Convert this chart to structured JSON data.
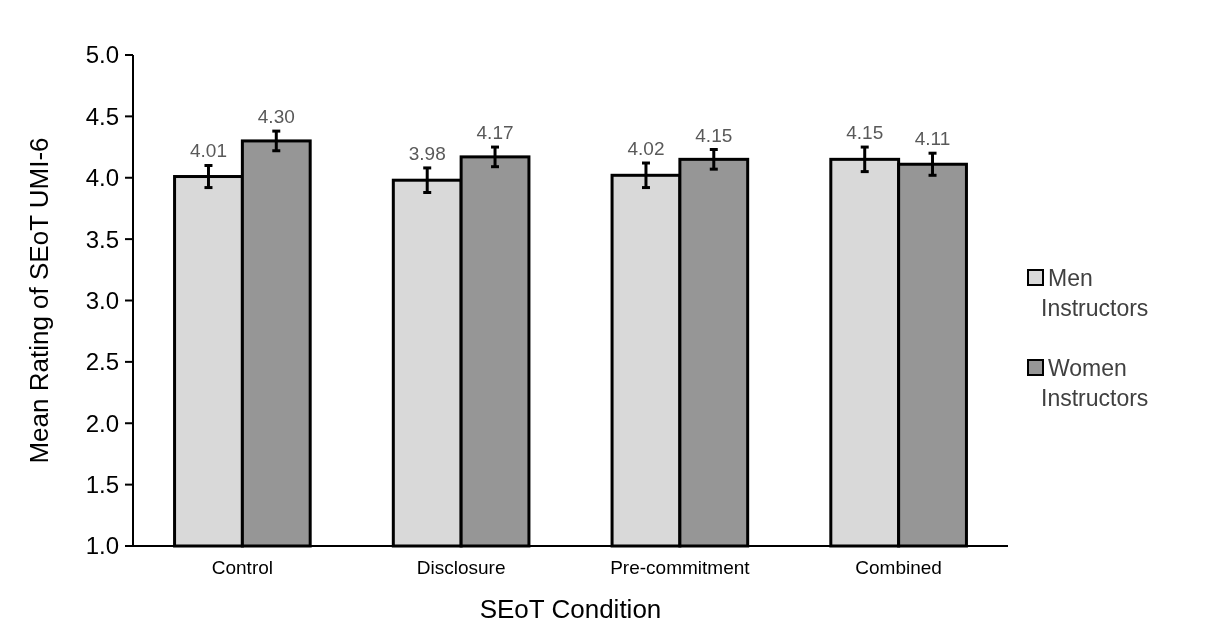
{
  "chart_data": {
    "type": "bar",
    "xlabel": "SEoT Condition",
    "ylabel": "Mean Rating of SEoT UMI-6",
    "categories": [
      "Control",
      "Disclosure",
      "Pre-commitment",
      "Combined"
    ],
    "series": [
      {
        "name": "Men Instructors",
        "color": "#d9d9d9",
        "values": [
          4.01,
          3.98,
          4.02,
          4.15
        ],
        "errors": [
          0.09,
          0.1,
          0.1,
          0.1
        ]
      },
      {
        "name": "Women Instructors",
        "color": "#969696",
        "values": [
          4.3,
          4.17,
          4.15,
          4.11
        ],
        "errors": [
          0.08,
          0.08,
          0.08,
          0.09
        ]
      }
    ],
    "ylim": [
      1.0,
      5.0
    ],
    "yticks": [
      {
        "value": 1,
        "label": "1.0"
      },
      {
        "value": 1.5,
        "label": "1.5"
      },
      {
        "value": 2,
        "label": "2.0"
      },
      {
        "value": 2.5,
        "label": "2.5"
      },
      {
        "value": 3,
        "label": "3.0"
      },
      {
        "value": 3.5,
        "label": "3.5"
      },
      {
        "value": 4,
        "label": "4.0"
      },
      {
        "value": 4.5,
        "label": "4.5"
      },
      {
        "value": 5,
        "label": "5.0"
      }
    ],
    "value_labels": [
      [
        "4.01",
        "3.98",
        "4.02",
        "4.15"
      ],
      [
        "4.30",
        "4.17",
        "4.15",
        "4.11"
      ]
    ],
    "grid": false,
    "legend": "right"
  }
}
